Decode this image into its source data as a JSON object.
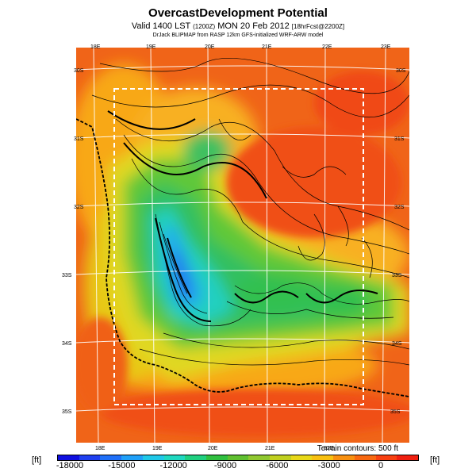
{
  "title": "OvercastDevelopment Potential",
  "subtitle_main": "Valid 1400 LST",
  "subtitle_paren": "(1200Z)",
  "subtitle_date": "MON 20 Feb 2012",
  "subtitle_fcst": "[18hrFcst@2200Z]",
  "credit": "DrJack BLIPMAP from RASP 12km GFS-initialized WRF-ARW model",
  "terrain_note": "Terrain contours: 500 ft",
  "unit_left": "[ft]",
  "unit_right": "[ft]",
  "lon_labels_top": [
    "18E",
    "19E",
    "20E",
    "21E",
    "22E",
    "23E"
  ],
  "lon_labels_bottom": [
    "18E",
    "19E",
    "20E",
    "21E",
    "22E"
  ],
  "lat_labels_left": [
    "30S",
    "31S",
    "32S",
    "33S",
    "34S",
    "35S"
  ],
  "lat_labels_right": [
    "30S",
    "31S",
    "32S",
    "33S",
    "34S",
    "35S"
  ],
  "colorbar": {
    "tick_labels": [
      "-18000",
      "-15000",
      "-12000",
      "-9000",
      "-6000",
      "-3000",
      "0"
    ],
    "colors": [
      "#1010e0",
      "#2040f0",
      "#2070f8",
      "#20a0f8",
      "#20c8e8",
      "#20d8c0",
      "#20d080",
      "#30c040",
      "#60c030",
      "#90c830",
      "#c0d020",
      "#e8d818",
      "#f8c010",
      "#f89010",
      "#f86810",
      "#f84010",
      "#f02010"
    ]
  },
  "colors": {
    "high": "#f05a10",
    "mid": "#f8a818",
    "yellow": "#e8d818",
    "green": "#40c048",
    "teal": "#28d0c8",
    "blue": "#2080f0"
  }
}
